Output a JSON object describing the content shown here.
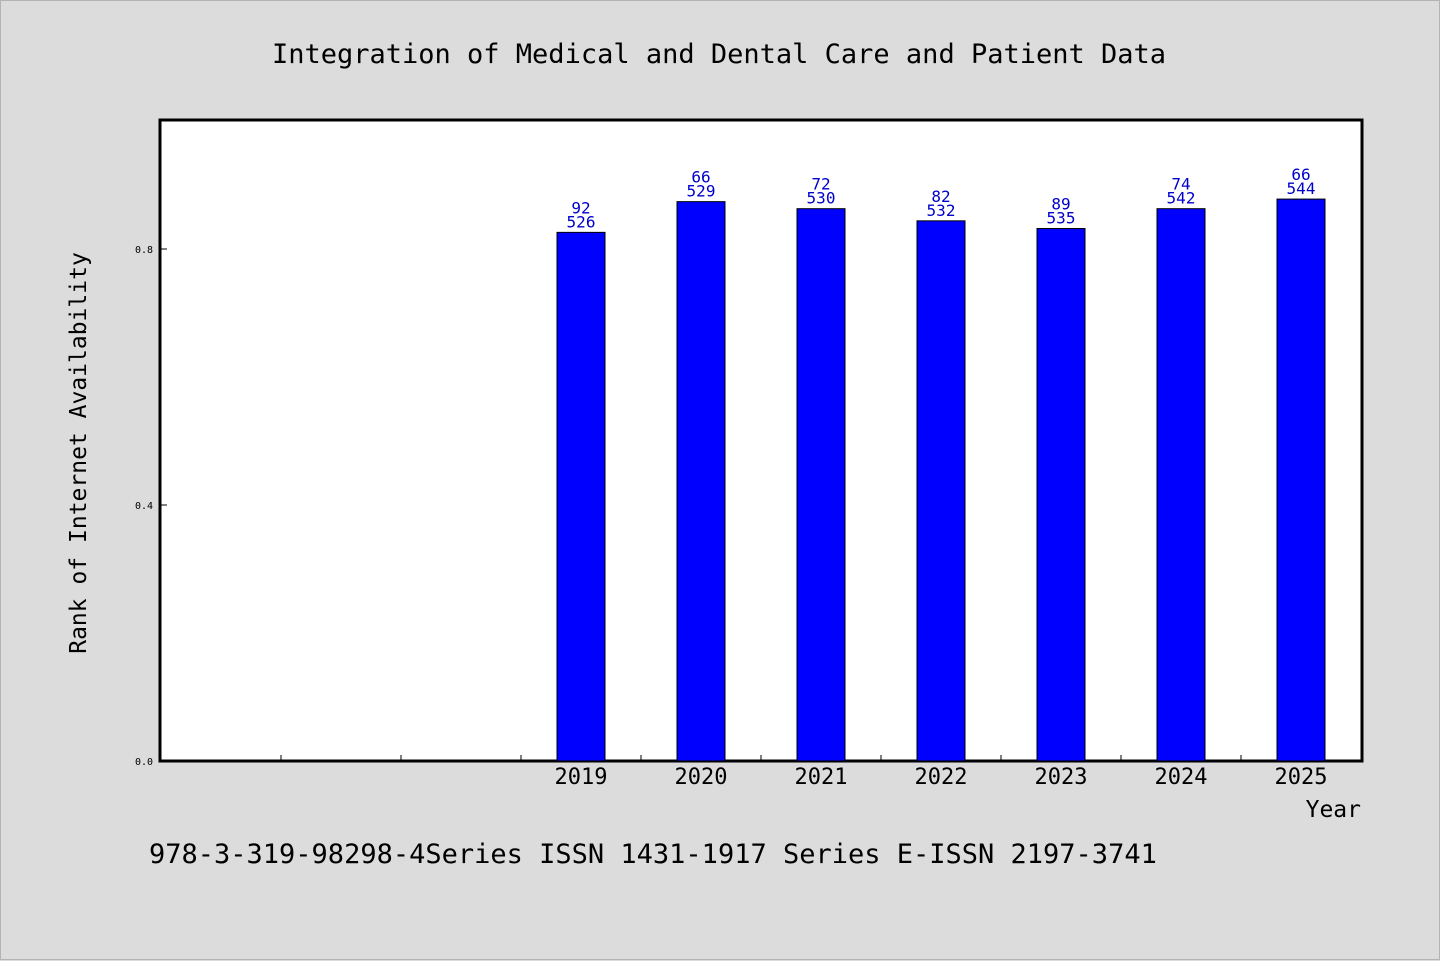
{
  "chart_data": {
    "type": "bar",
    "title": "Integration of Medical and Dental Care and Patient Data",
    "xlabel": "Year",
    "ylabel": "Rank of Internet Availability",
    "categories": [
      "",
      "",
      "",
      "2019",
      "2020",
      "2021",
      "2022",
      "2023",
      "2024",
      "2025"
    ],
    "values": [
      null,
      null,
      null,
      0.826,
      0.874,
      0.863,
      0.844,
      0.832,
      0.863,
      0.878
    ],
    "bar_labels": [
      null,
      null,
      null,
      [
        "92",
        "526"
      ],
      [
        "66",
        "529"
      ],
      [
        "72",
        "530"
      ],
      [
        "82",
        "532"
      ],
      [
        "89",
        "535"
      ],
      [
        "74",
        "542"
      ],
      [
        "66",
        "544"
      ]
    ],
    "ylim": [
      0,
      1.0
    ],
    "yticks": [
      0.0,
      0.4,
      0.8
    ],
    "ytick_labels": [
      "0.0",
      "0.4",
      "0.8"
    ],
    "bar_color": "#0000ff",
    "label_color": "#0000cc",
    "grid": false,
    "legend": "none"
  },
  "footer": {
    "text": "978-3-319-98298-4Series ISSN 1431-1917 Series E-ISSN 2197-3741"
  }
}
